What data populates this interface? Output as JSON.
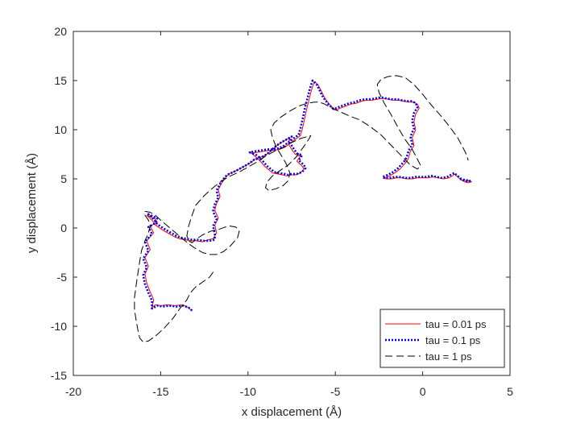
{
  "chart_data": {
    "type": "line",
    "title": "",
    "xlabel": "x displacement (Å)",
    "ylabel": "y displacement (Å)",
    "xlim": [
      -20,
      5
    ],
    "ylim": [
      -15,
      20
    ],
    "xticks": [
      -20,
      -15,
      -10,
      -5,
      0,
      5
    ],
    "yticks": [
      -15,
      -10,
      -5,
      0,
      5,
      10,
      15,
      20
    ],
    "xtick_labels": [
      "-20",
      "-15",
      "-10",
      "-5",
      "0",
      "5"
    ],
    "ytick_labels": [
      "-15",
      "-10",
      "-5",
      "0",
      "5",
      "10",
      "15",
      "20"
    ],
    "grid": false,
    "legend_position": "bottom-right",
    "series": [
      {
        "name": "tau = 0.01 ps",
        "color": "#ff0000",
        "style": "solid",
        "x": [
          -13.3,
          -13.5,
          -13.8,
          -14.2,
          -14.6,
          -15.0,
          -15.3,
          -15.5,
          -15.4,
          -15.6,
          -15.8,
          -15.9,
          -15.7,
          -15.9,
          -15.6,
          -15.8,
          -15.4,
          -15.6,
          -15.2,
          -15.3,
          -15.8,
          -15.5,
          -15.3,
          -14.8,
          -14.4,
          -14.2,
          -13.9,
          -13.6,
          -13.3,
          -13.0,
          -12.6,
          -12.3,
          -12.0,
          -11.8,
          -11.9,
          -11.7,
          -11.9,
          -11.8,
          -11.6,
          -11.7,
          -11.5,
          -11.3,
          -11.1,
          -10.6,
          -10.2,
          -9.8,
          -9.6,
          -9.3,
          -9.0,
          -8.7,
          -8.4,
          -8.1,
          -7.8,
          -7.6,
          -7.7,
          -7.5,
          -7.3,
          -7.0,
          -7.2,
          -6.9,
          -6.8,
          -7.0,
          -7.3,
          -7.6,
          -7.8,
          -8.0,
          -8.3,
          -8.6,
          -8.8,
          -9.0,
          -9.2,
          -9.4,
          -9.6,
          -9.8,
          -9.5,
          -9.1,
          -8.8,
          -8.5,
          -8.2,
          -7.9,
          -7.6,
          -7.3,
          -7.0,
          -6.9,
          -6.8,
          -6.7,
          -6.6,
          -6.5,
          -6.4,
          -6.3,
          -6.2,
          -6.0,
          -5.8,
          -5.6,
          -5.3,
          -5.0,
          -4.7,
          -4.4,
          -4.1,
          -3.8,
          -3.5,
          -3.2,
          -2.9,
          -2.6,
          -2.3,
          -2.0,
          -1.7,
          -1.4,
          -1.1,
          -0.8,
          -0.5,
          -0.3,
          -0.2,
          -0.4,
          -0.5,
          -0.4,
          -0.6,
          -0.5,
          -0.7,
          -0.8,
          -0.9,
          -1.1,
          -1.3,
          -1.6,
          -1.9,
          -2.2,
          -2.1,
          -1.8,
          -1.5,
          -1.2,
          -0.9,
          -0.6,
          -0.3,
          0.0,
          0.3,
          0.6,
          0.9,
          1.2,
          1.5,
          1.7,
          1.8,
          2.0,
          2.2,
          2.4,
          2.6,
          2.8,
          2.5,
          2.2
        ],
        "y": [
          -8.3,
          -8.0,
          -7.8,
          -7.9,
          -7.8,
          -7.9,
          -7.8,
          -8.1,
          -7.3,
          -6.5,
          -5.6,
          -4.7,
          -3.9,
          -3.0,
          -2.2,
          -1.3,
          -0.5,
          0.2,
          0.6,
          0.9,
          1.3,
          0.8,
          0.3,
          -0.3,
          -0.7,
          -0.9,
          -1.1,
          -1.2,
          -1.3,
          -1.3,
          -1.4,
          -1.2,
          -1.1,
          -0.5,
          0.3,
          1.0,
          1.8,
          2.5,
          3.2,
          3.9,
          4.6,
          5.1,
          5.5,
          5.9,
          6.3,
          6.7,
          7.0,
          7.2,
          7.4,
          7.8,
          8.3,
          8.7,
          9.0,
          9.2,
          8.6,
          8.0,
          7.5,
          7.3,
          6.8,
          6.3,
          6.0,
          5.6,
          5.4,
          5.4,
          5.3,
          5.4,
          5.5,
          5.6,
          5.9,
          6.2,
          6.6,
          7.0,
          7.3,
          7.6,
          7.7,
          7.8,
          7.9,
          7.9,
          8.0,
          8.2,
          8.6,
          9.0,
          9.4,
          10.0,
          10.8,
          11.6,
          12.4,
          13.1,
          13.8,
          14.4,
          14.9,
          14.6,
          13.9,
          13.2,
          12.5,
          12.0,
          12.2,
          12.4,
          12.6,
          12.7,
          12.9,
          13.0,
          13.0,
          13.1,
          13.2,
          13.1,
          13.0,
          13.0,
          12.9,
          12.8,
          12.8,
          12.6,
          12.2,
          11.6,
          10.8,
          10.0,
          9.2,
          8.4,
          7.8,
          7.2,
          6.8,
          6.4,
          6.0,
          5.6,
          5.3,
          5.1,
          5.0,
          5.0,
          5.1,
          5.1,
          5.0,
          5.0,
          5.1,
          5.1,
          5.1,
          5.2,
          5.1,
          5.0,
          5.1,
          5.3,
          5.5,
          5.2,
          4.9,
          4.7,
          4.6,
          4.7,
          4.8,
          4.9
        ]
      },
      {
        "name": "tau = 0.1 ps",
        "color": "#0000ee",
        "style": "dotted",
        "x": [
          -13.2,
          -13.4,
          -13.7,
          -14.1,
          -14.5,
          -14.9,
          -15.2,
          -15.5,
          -15.5,
          -15.7,
          -15.9,
          -16.0,
          -15.8,
          -16.0,
          -15.7,
          -15.9,
          -15.5,
          -15.7,
          -15.3,
          -15.2,
          -15.7,
          -15.4,
          -15.2,
          -14.7,
          -14.3,
          -14.1,
          -13.8,
          -13.5,
          -13.2,
          -12.9,
          -12.5,
          -12.2,
          -11.9,
          -11.9,
          -12.0,
          -11.8,
          -12.0,
          -11.9,
          -11.7,
          -11.8,
          -11.6,
          -11.4,
          -11.2,
          -10.7,
          -10.3,
          -9.9,
          -9.7,
          -9.4,
          -9.1,
          -8.8,
          -8.5,
          -8.2,
          -7.9,
          -7.5,
          -7.6,
          -7.4,
          -7.2,
          -6.9,
          -7.1,
          -6.8,
          -6.7,
          -6.9,
          -7.2,
          -7.5,
          -7.7,
          -7.9,
          -8.2,
          -8.5,
          -8.7,
          -8.9,
          -9.1,
          -9.3,
          -9.5,
          -9.9,
          -9.6,
          -9.2,
          -8.9,
          -8.6,
          -8.3,
          -8.0,
          -7.7,
          -7.4,
          -7.1,
          -7.0,
          -6.9,
          -6.8,
          -6.7,
          -6.6,
          -6.5,
          -6.4,
          -6.3,
          -6.1,
          -5.9,
          -5.7,
          -5.4,
          -5.1,
          -4.8,
          -4.5,
          -4.2,
          -3.9,
          -3.6,
          -3.3,
          -3.0,
          -2.7,
          -2.4,
          -2.1,
          -1.8,
          -1.5,
          -1.2,
          -0.9,
          -0.6,
          -0.4,
          -0.3,
          -0.5,
          -0.6,
          -0.5,
          -0.7,
          -0.6,
          -0.8,
          -0.9,
          -1.0,
          -1.2,
          -1.4,
          -1.7,
          -2.0,
          -2.3,
          -2.2,
          -1.9,
          -1.6,
          -1.3,
          -1.0,
          -0.7,
          -0.4,
          -0.1,
          0.2,
          0.5,
          0.8,
          1.1,
          1.4,
          1.6,
          1.8,
          2.0,
          2.2,
          2.4,
          2.6,
          2.7,
          2.4,
          2.1
        ],
        "y": [
          -8.4,
          -8.1,
          -7.9,
          -8.0,
          -7.9,
          -8.0,
          -7.9,
          -8.2,
          -7.4,
          -6.6,
          -5.7,
          -4.8,
          -4.0,
          -3.1,
          -2.3,
          -1.4,
          -0.6,
          0.1,
          0.5,
          1.0,
          1.4,
          0.9,
          0.4,
          -0.2,
          -0.6,
          -0.8,
          -1.0,
          -1.1,
          -1.2,
          -1.2,
          -1.3,
          -1.3,
          -1.2,
          -0.6,
          0.2,
          0.9,
          1.7,
          2.4,
          3.1,
          3.8,
          4.5,
          5.0,
          5.4,
          5.8,
          6.2,
          6.6,
          6.9,
          7.1,
          7.3,
          7.7,
          8.2,
          8.6,
          8.9,
          9.3,
          8.7,
          8.1,
          7.6,
          7.4,
          6.9,
          6.4,
          6.1,
          5.7,
          5.5,
          5.5,
          5.4,
          5.5,
          5.6,
          5.7,
          6.0,
          6.3,
          6.7,
          7.1,
          7.4,
          7.7,
          7.8,
          7.9,
          8.0,
          8.0,
          8.1,
          8.3,
          8.7,
          9.1,
          9.5,
          10.1,
          10.9,
          11.7,
          12.5,
          13.2,
          13.9,
          14.5,
          15.0,
          14.7,
          14.0,
          13.3,
          12.6,
          12.1,
          12.3,
          12.5,
          12.7,
          12.8,
          13.0,
          13.1,
          13.1,
          13.2,
          13.3,
          13.2,
          13.1,
          13.1,
          13.0,
          12.9,
          12.9,
          12.7,
          12.3,
          11.7,
          10.9,
          10.1,
          9.3,
          8.5,
          7.9,
          7.3,
          6.9,
          6.5,
          6.1,
          5.7,
          5.4,
          5.2,
          5.1,
          5.1,
          5.2,
          5.2,
          5.1,
          5.1,
          5.2,
          5.2,
          5.2,
          5.3,
          5.2,
          5.1,
          5.2,
          5.4,
          5.6,
          5.3,
          5.0,
          4.8,
          4.7,
          4.8,
          4.9,
          5.0
        ]
      },
      {
        "name": "tau = 1 ps",
        "color": "#000000",
        "style": "dashed",
        "x": [
          -12.0,
          -12.2,
          -12.6,
          -13.0,
          -13.3,
          -13.5,
          -13.9,
          -14.3,
          -14.8,
          -15.3,
          -15.7,
          -16.0,
          -16.2,
          -16.3,
          -16.4,
          -16.5,
          -16.5,
          -16.4,
          -16.3,
          -16.2,
          -16.1,
          -15.9,
          -15.7,
          -15.6,
          -15.7,
          -15.9,
          -15.9,
          -15.6,
          -15.3,
          -15.0,
          -14.6,
          -14.2,
          -13.8,
          -13.4,
          -13.0,
          -12.6,
          -12.2,
          -11.8,
          -11.4,
          -11.0,
          -10.6,
          -10.5,
          -10.7,
          -11.0,
          -11.3,
          -11.6,
          -12.1,
          -12.6,
          -13.0,
          -13.2,
          -13.4,
          -13.5,
          -13.4,
          -13.2,
          -13.0,
          -12.5,
          -12.0,
          -11.5,
          -11.0,
          -10.5,
          -10.0,
          -9.5,
          -9.0,
          -8.5,
          -8.0,
          -7.5,
          -7.0,
          -6.6,
          -6.4,
          -6.5,
          -6.8,
          -7.2,
          -7.7,
          -8.2,
          -8.6,
          -8.9,
          -9.0,
          -8.8,
          -8.4,
          -8.0,
          -7.7,
          -7.6,
          -7.8,
          -8.1,
          -8.4,
          -8.6,
          -8.7,
          -8.5,
          -8.1,
          -7.6,
          -7.1,
          -6.6,
          -6.2,
          -5.9,
          -5.6,
          -5.2,
          -4.7,
          -4.2,
          -3.6,
          -3.0,
          -2.4,
          -1.8,
          -1.2,
          -0.7,
          -0.3,
          -0.1,
          -0.3,
          -0.6,
          -1.0,
          -1.4,
          -1.8,
          -2.2,
          -2.5,
          -2.6,
          -2.4,
          -2.0,
          -1.5,
          -1.0,
          -0.5,
          0.0,
          0.5,
          1.0,
          1.5,
          2.0,
          2.3,
          2.5,
          2.6
        ],
        "y": [
          -4.5,
          -5.0,
          -5.5,
          -6.0,
          -6.6,
          -7.3,
          -8.2,
          -9.2,
          -10.2,
          -11.0,
          -11.5,
          -11.6,
          -11.2,
          -10.4,
          -9.4,
          -8.3,
          -7.1,
          -5.8,
          -4.6,
          -3.4,
          -2.3,
          -1.3,
          -0.5,
          0.2,
          0.8,
          1.3,
          1.7,
          1.6,
          1.3,
          0.8,
          0.2,
          -0.4,
          -1.0,
          -1.6,
          -2.1,
          -2.5,
          -2.7,
          -2.7,
          -2.4,
          -1.8,
          -1.0,
          -0.3,
          0.1,
          0.2,
          0.1,
          -0.1,
          -0.3,
          -0.7,
          -1.2,
          -1.5,
          -1.3,
          -0.8,
          0.2,
          1.3,
          2.3,
          3.3,
          4.1,
          4.8,
          5.3,
          5.7,
          6.2,
          6.7,
          7.3,
          7.8,
          8.2,
          8.7,
          9.1,
          9.3,
          9.4,
          9.1,
          8.3,
          7.3,
          6.4,
          5.8,
          5.3,
          4.7,
          4.1,
          3.8,
          4.0,
          4.3,
          4.8,
          5.6,
          6.5,
          7.4,
          8.3,
          9.2,
          10.0,
          10.7,
          11.3,
          11.9,
          12.4,
          12.7,
          12.8,
          12.8,
          12.6,
          12.2,
          11.8,
          11.4,
          11.0,
          10.3,
          9.5,
          8.4,
          7.3,
          6.4,
          6.0,
          6.3,
          7.0,
          8.0,
          9.0,
          10.2,
          11.5,
          12.7,
          13.8,
          14.6,
          15.1,
          15.4,
          15.5,
          15.3,
          14.6,
          13.6,
          12.5,
          11.5,
          10.4,
          9.2,
          8.2,
          7.5,
          6.9
        ]
      }
    ]
  }
}
